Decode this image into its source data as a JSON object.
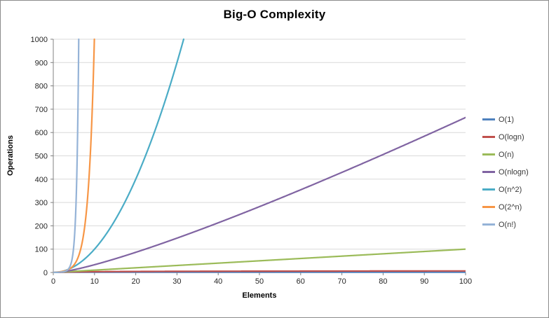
{
  "chart_data": {
    "type": "line",
    "title": "Big-O Complexity",
    "xlabel": "Elements",
    "ylabel": "Operations",
    "xlim": [
      0,
      100
    ],
    "ylim": [
      0,
      1000
    ],
    "x_ticks": [
      0,
      10,
      20,
      30,
      40,
      50,
      60,
      70,
      80,
      90,
      100
    ],
    "y_ticks": [
      0,
      100,
      200,
      300,
      400,
      500,
      600,
      700,
      800,
      900,
      1000
    ],
    "grid": "horizontal",
    "legend_position": "right",
    "axis_color": "#808080",
    "gridline_color": "#d9d9d9",
    "series": [
      {
        "name": "O(1)",
        "fn": "constant",
        "color": "#4F81BD",
        "samples_x": [
          1,
          10,
          50,
          100
        ],
        "samples_y": [
          1,
          1,
          1,
          1
        ]
      },
      {
        "name": "O(logn)",
        "fn": "log2",
        "color": "#C0504D",
        "samples_x": [
          1,
          10,
          50,
          100
        ],
        "samples_y": [
          0,
          3.32,
          5.64,
          6.64
        ]
      },
      {
        "name": "O(n)",
        "fn": "linear",
        "color": "#9BBB59",
        "samples_x": [
          1,
          10,
          50,
          100
        ],
        "samples_y": [
          1,
          10,
          50,
          100
        ]
      },
      {
        "name": "O(nlogn)",
        "fn": "nlogn",
        "color": "#8064A2",
        "samples_x": [
          1,
          10,
          50,
          100
        ],
        "samples_y": [
          0,
          33.2,
          282.2,
          664.4
        ]
      },
      {
        "name": "O(n^2)",
        "fn": "quadratic",
        "color": "#4BACC6",
        "samples_x": [
          1,
          10,
          20,
          31.6
        ],
        "samples_y": [
          1,
          100,
          400,
          1000
        ]
      },
      {
        "name": "O(2^n)",
        "fn": "exp2",
        "color": "#F79646",
        "samples_x": [
          1,
          5,
          8,
          9.97
        ],
        "samples_y": [
          2,
          32,
          256,
          1000
        ]
      },
      {
        "name": "O(n!)",
        "fn": "factorial",
        "color": "#95B3D7",
        "samples_x": [
          1,
          5,
          6,
          6.2
        ],
        "samples_y": [
          1,
          120,
          720,
          1000
        ]
      }
    ]
  }
}
